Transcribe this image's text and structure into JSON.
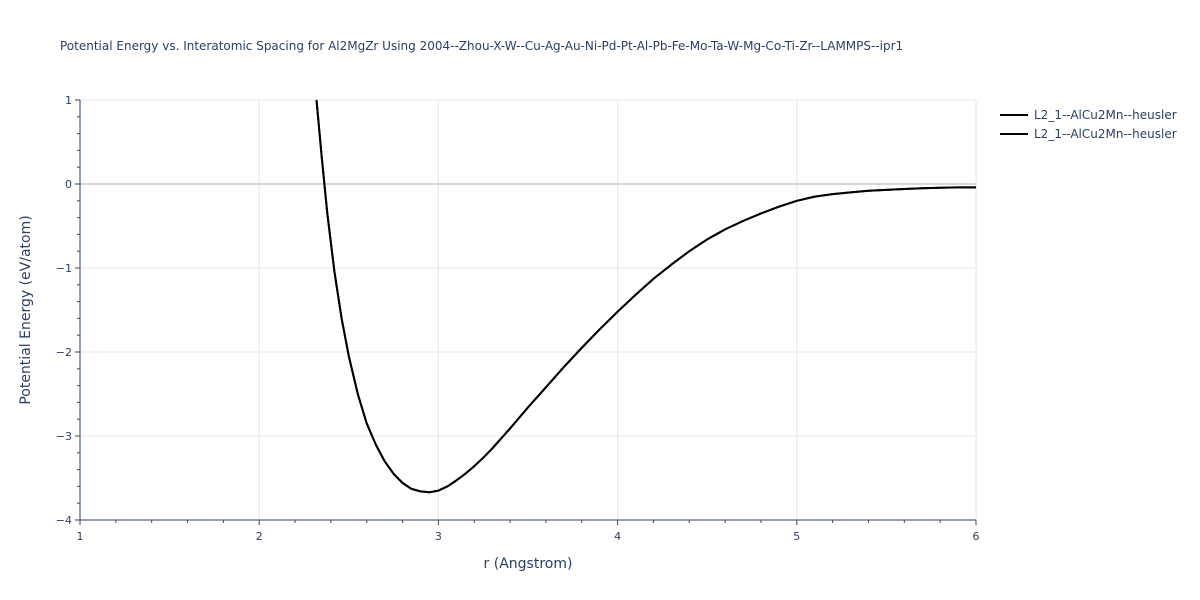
{
  "chart_data": {
    "type": "line",
    "title": "Potential Energy vs. Interatomic Spacing for Al2MgZr Using 2004--Zhou-X-W--Cu-Ag-Au-Ni-Pd-Pt-Al-Pb-Fe-Mo-Ta-W-Mg-Co-Ti-Zr--LAMMPS--ipr1",
    "xlabel": "r (Angstrom)",
    "ylabel": "Potential Energy (eV/atom)",
    "xlim": [
      1,
      6
    ],
    "ylim": [
      -4,
      1
    ],
    "xticks": [
      1,
      2,
      3,
      4,
      5,
      6
    ],
    "yticks": [
      -4,
      -3,
      -2,
      -1,
      0,
      1
    ],
    "xtick_labels": [
      "1",
      "2",
      "3",
      "4",
      "5",
      "6"
    ],
    "ytick_labels": [
      "−4",
      "−3",
      "−2",
      "−1",
      "0",
      "1"
    ],
    "grid": true,
    "legend_position": "top-right",
    "colors": {
      "line": "#000000",
      "grid": "#e5e5e5",
      "zeroline": "#c8c8c8",
      "text": "#2a3f5f"
    },
    "series": [
      {
        "name": "L2_1--AlCu2Mn--heusler",
        "x": [
          2.32,
          2.35,
          2.38,
          2.42,
          2.46,
          2.5,
          2.55,
          2.6,
          2.65,
          2.7,
          2.75,
          2.8,
          2.85,
          2.9,
          2.95,
          3.0,
          3.05,
          3.1,
          3.15,
          3.2,
          3.25,
          3.3,
          3.4,
          3.5,
          3.6,
          3.7,
          3.8,
          3.9,
          4.0,
          4.1,
          4.2,
          4.3,
          4.4,
          4.5,
          4.6,
          4.7,
          4.8,
          4.9,
          5.0,
          5.1,
          5.2,
          5.3,
          5.4,
          5.5,
          5.6,
          5.7,
          5.8,
          5.9,
          6.0
        ],
        "y": [
          1.0,
          0.3,
          -0.35,
          -1.05,
          -1.6,
          -2.05,
          -2.5,
          -2.85,
          -3.1,
          -3.3,
          -3.45,
          -3.56,
          -3.63,
          -3.66,
          -3.67,
          -3.65,
          -3.6,
          -3.53,
          -3.45,
          -3.36,
          -3.26,
          -3.15,
          -2.91,
          -2.66,
          -2.42,
          -2.18,
          -1.95,
          -1.73,
          -1.52,
          -1.32,
          -1.13,
          -0.96,
          -0.8,
          -0.66,
          -0.54,
          -0.44,
          -0.35,
          -0.27,
          -0.2,
          -0.15,
          -0.12,
          -0.1,
          -0.08,
          -0.07,
          -0.06,
          -0.05,
          -0.045,
          -0.04,
          -0.04
        ]
      },
      {
        "name": "L2_1--AlCu2Mn--heusler",
        "x": [
          2.32,
          2.35,
          2.38,
          2.42,
          2.46,
          2.5,
          2.55,
          2.6,
          2.65,
          2.7,
          2.75,
          2.8,
          2.85,
          2.9,
          2.95,
          3.0,
          3.05,
          3.1,
          3.15,
          3.2,
          3.25,
          3.3,
          3.4,
          3.5,
          3.6,
          3.7,
          3.8,
          3.9,
          4.0,
          4.1,
          4.2,
          4.3,
          4.4,
          4.5,
          4.6,
          4.7,
          4.8,
          4.9,
          5.0,
          5.1,
          5.2,
          5.3,
          5.4,
          5.5,
          5.6,
          5.7,
          5.8,
          5.9,
          6.0
        ],
        "y": [
          1.0,
          0.3,
          -0.35,
          -1.05,
          -1.6,
          -2.05,
          -2.5,
          -2.85,
          -3.1,
          -3.3,
          -3.45,
          -3.56,
          -3.63,
          -3.66,
          -3.67,
          -3.65,
          -3.6,
          -3.53,
          -3.45,
          -3.36,
          -3.26,
          -3.15,
          -2.91,
          -2.66,
          -2.42,
          -2.18,
          -1.95,
          -1.73,
          -1.52,
          -1.32,
          -1.13,
          -0.96,
          -0.8,
          -0.66,
          -0.54,
          -0.44,
          -0.35,
          -0.27,
          -0.2,
          -0.15,
          -0.12,
          -0.1,
          -0.08,
          -0.07,
          -0.06,
          -0.05,
          -0.045,
          -0.04,
          -0.04
        ]
      }
    ]
  }
}
